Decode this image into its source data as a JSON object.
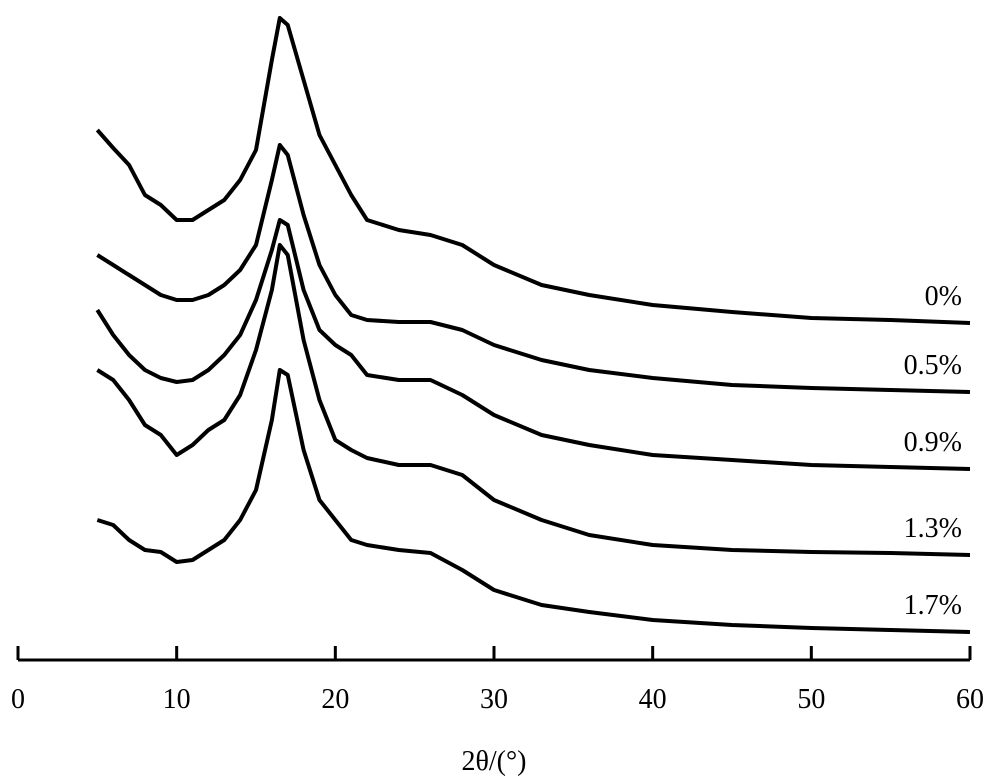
{
  "chart_data": {
    "type": "line",
    "xlabel": "2θ/(°)",
    "x": [
      5,
      6,
      7,
      8,
      9,
      10,
      11,
      12,
      13,
      14,
      15,
      16,
      16.5,
      17,
      18,
      19,
      20,
      21,
      22,
      24,
      26,
      28,
      30,
      33,
      36,
      40,
      45,
      50,
      55,
      60
    ],
    "xlim": [
      0,
      60
    ],
    "xticks": [
      0,
      10,
      20,
      30,
      40,
      50,
      60
    ],
    "ylim": [
      0,
      650
    ],
    "series": [
      {
        "name": "0%",
        "color": "#000000",
        "values": [
          530,
          512,
          495,
          465,
          455,
          440,
          440,
          450,
          460,
          480,
          510,
          600,
          642,
          635,
          580,
          525,
          495,
          465,
          440,
          430,
          425,
          415,
          395,
          375,
          365,
          355,
          348,
          342,
          340,
          337
        ]
      },
      {
        "name": "0.5%",
        "color": "#000000",
        "values": [
          405,
          395,
          385,
          375,
          365,
          360,
          360,
          365,
          375,
          390,
          415,
          480,
          515,
          505,
          445,
          395,
          365,
          345,
          340,
          338,
          338,
          330,
          315,
          300,
          290,
          282,
          275,
          272,
          270,
          268
        ]
      },
      {
        "name": "0.9%",
        "color": "#000000",
        "values": [
          350,
          325,
          305,
          290,
          282,
          278,
          280,
          290,
          305,
          325,
          360,
          410,
          440,
          435,
          370,
          330,
          315,
          305,
          285,
          280,
          280,
          265,
          245,
          225,
          215,
          205,
          200,
          195,
          193,
          191
        ]
      },
      {
        "name": "1.3%",
        "color": "#000000",
        "values": [
          290,
          280,
          260,
          235,
          225,
          205,
          215,
          230,
          240,
          265,
          310,
          370,
          415,
          405,
          320,
          260,
          220,
          210,
          202,
          195,
          195,
          185,
          160,
          140,
          125,
          115,
          110,
          108,
          107,
          105
        ]
      },
      {
        "name": "1.7%",
        "color": "#000000",
        "values": [
          140,
          135,
          120,
          110,
          108,
          98,
          100,
          110,
          120,
          140,
          170,
          240,
          290,
          285,
          210,
          160,
          140,
          120,
          115,
          110,
          107,
          90,
          70,
          55,
          48,
          40,
          35,
          32,
          30,
          28
        ]
      }
    ]
  }
}
